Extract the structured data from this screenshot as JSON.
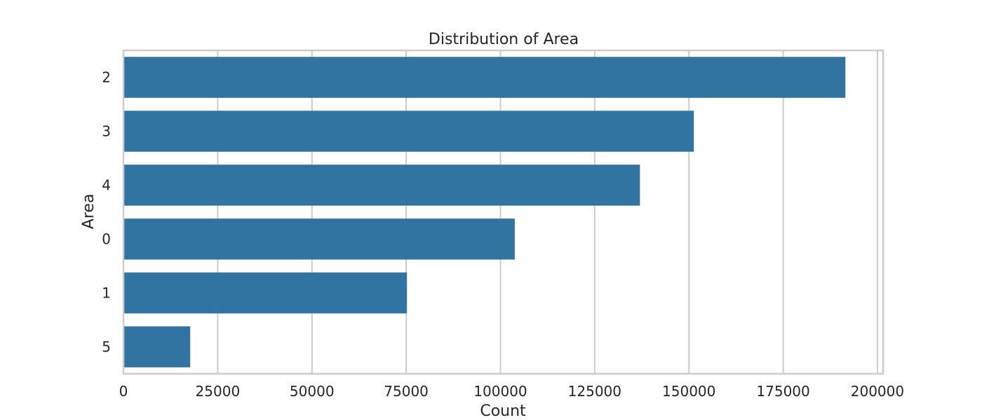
{
  "chart_data": {
    "type": "bar",
    "orientation": "horizontal",
    "title": "Distribution of Area",
    "xlabel": "Count",
    "ylabel": "Area",
    "categories": [
      "2",
      "3",
      "4",
      "0",
      "1",
      "5"
    ],
    "values": [
      191500,
      151300,
      137000,
      103800,
      75200,
      17700
    ],
    "xlim": [
      0,
      201500
    ],
    "xticks": [
      0,
      25000,
      50000,
      75000,
      100000,
      125000,
      150000,
      175000,
      200000
    ],
    "grid": true,
    "bar_color": "#3274a1",
    "grid_color": "#cccccc"
  }
}
